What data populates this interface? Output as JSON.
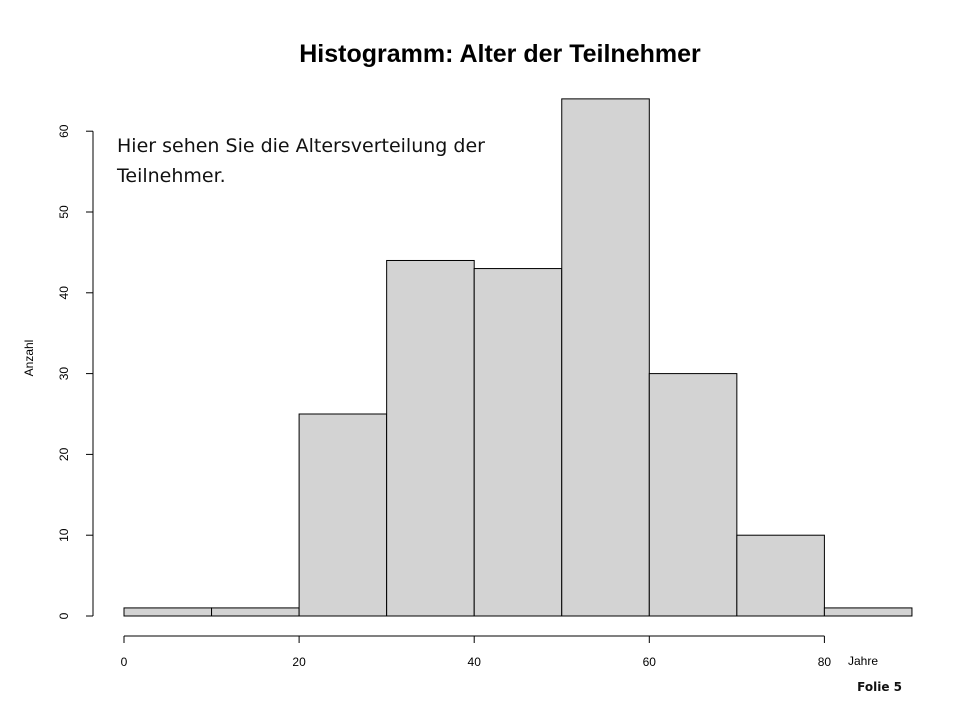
{
  "slide": {
    "footer": "Folie 5",
    "annotation": "Hier sehen Sie die Altersverteilung der Teilnehmer."
  },
  "chart_data": {
    "type": "bar",
    "title": "Histogramm: Alter der Teilnehmer",
    "xlabel": "Jahre",
    "ylabel": "Anzahl",
    "bins": [
      [
        0,
        10
      ],
      [
        10,
        20
      ],
      [
        20,
        30
      ],
      [
        30,
        40
      ],
      [
        40,
        50
      ],
      [
        50,
        60
      ],
      [
        60,
        70
      ],
      [
        70,
        80
      ],
      [
        80,
        90
      ]
    ],
    "values": [
      1,
      1,
      25,
      44,
      43,
      64,
      30,
      10,
      1
    ],
    "x_ticks": [
      0,
      20,
      40,
      60,
      80
    ],
    "y_ticks": [
      0,
      10,
      20,
      30,
      40,
      50,
      60
    ],
    "xlim": [
      0,
      90
    ],
    "ylim": [
      0,
      64
    ],
    "bar_color": "#d3d3d3",
    "grid": false
  }
}
